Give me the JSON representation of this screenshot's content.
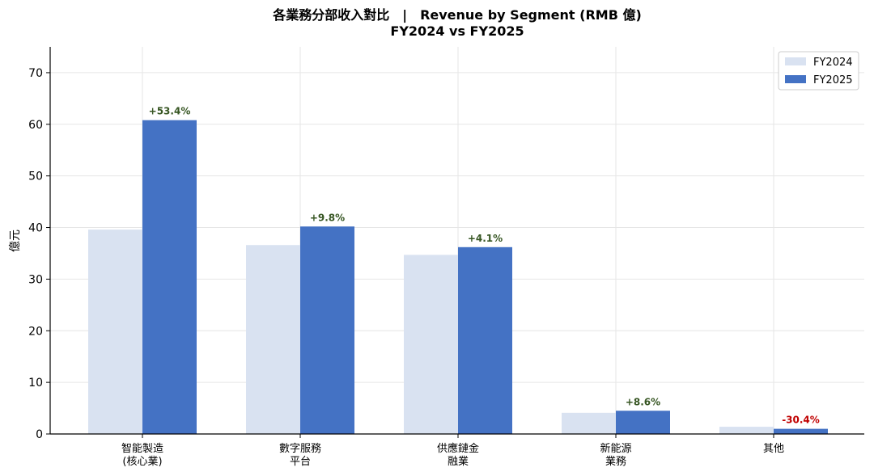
{
  "chart_data": {
    "type": "bar",
    "title": "各業務分部收入對比　|　Revenue by Segment (RMB 億)",
    "subtitle": "FY2024 vs FY2025",
    "ylabel": "億元",
    "ylim": [
      0,
      75
    ],
    "yticks": [
      0,
      10,
      20,
      30,
      40,
      50,
      60,
      70
    ],
    "categories": [
      [
        "智能製造",
        "(核心業)"
      ],
      [
        "數字服務",
        "平台"
      ],
      [
        "供應鏈金",
        "融業"
      ],
      [
        "新能源",
        "業務"
      ],
      [
        "其他"
      ]
    ],
    "series": [
      {
        "name": "FY2024",
        "color": "#d9e2f1",
        "values": [
          39.6,
          36.6,
          34.7,
          4.1,
          1.4
        ]
      },
      {
        "name": "FY2025",
        "color": "#4472c4",
        "values": [
          60.8,
          40.2,
          36.2,
          4.5,
          1.0
        ]
      }
    ],
    "growth_labels": [
      "+53.4%",
      "+9.8%",
      "+4.1%",
      "+8.6%",
      "-30.4%"
    ],
    "positive_color": "#375623",
    "negative_color": "#c00000",
    "grid": true,
    "legend": "top-right"
  }
}
